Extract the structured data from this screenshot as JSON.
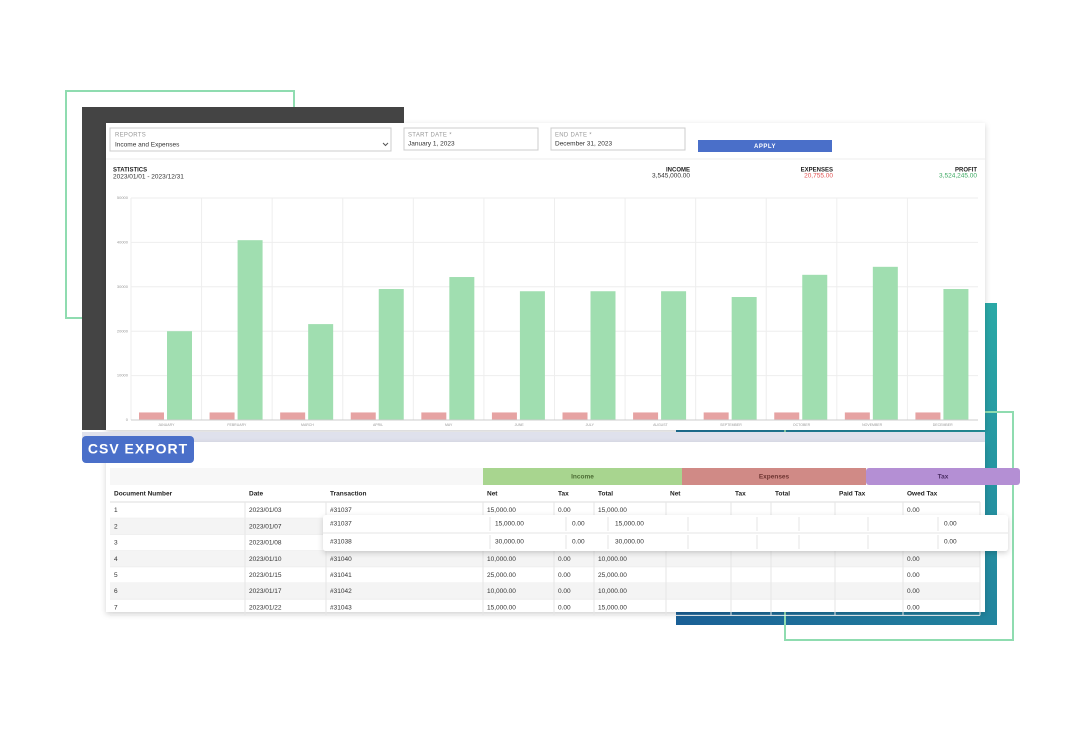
{
  "form": {
    "reports_label": "REPORTS",
    "reports_value": "Income and Expenses",
    "start_date_label": "START DATE *",
    "start_date_value": "January 1, 2023",
    "end_date_label": "END DATE *",
    "end_date_value": "December 31, 2023",
    "apply_button": "APPLY"
  },
  "statistics": {
    "label": "STATISTICS",
    "range": "2023/01/01 - 2023/12/31",
    "income_label": "INCOME",
    "income_value": "3,545,000.00",
    "expenses_label": "EXPENSES",
    "expenses_value": "20,755.00",
    "profit_label": "PROFIT",
    "profit_value": "3,524,245.00"
  },
  "chart_data": {
    "type": "bar",
    "categories": [
      "JANUARY",
      "FEBRUARY",
      "MARCH",
      "APRIL",
      "MAY",
      "JUNE",
      "JULY",
      "AUGUST",
      "SEPTEMBER",
      "OCTOBER",
      "NOVEMBER",
      "DECEMBER"
    ],
    "series": [
      {
        "color": "#e6a3a3",
        "values": [
          1700,
          1700,
          1700,
          1700,
          1700,
          1700,
          1700,
          1700,
          1700,
          1700,
          1700,
          1700
        ]
      },
      {
        "color": "#a0deb0",
        "values": [
          20000,
          40500,
          21600,
          29500,
          32200,
          29000,
          29000,
          29000,
          27700,
          32700,
          34500,
          29500
        ]
      }
    ],
    "ylim": [
      0,
      50000
    ],
    "yticks": [
      0,
      10000,
      20000,
      30000,
      40000,
      50000
    ],
    "grid": true
  },
  "badge": "CSV EXPORT",
  "table": {
    "groups": [
      "Income",
      "Expenses",
      "Tax"
    ],
    "columns": [
      "Document Number",
      "Date",
      "Transaction",
      "Net",
      "Tax",
      "Total",
      "Net",
      "Tax",
      "Total",
      "Paid Tax",
      "Owed Tax"
    ],
    "rows": [
      [
        "1",
        "2023/01/03",
        "#31037",
        "15,000.00",
        "0.00",
        "15,000.00",
        null,
        null,
        null,
        null,
        "0.00"
      ],
      [
        "2",
        "2023/01/07",
        null,
        null,
        null,
        null,
        null,
        null,
        null,
        null,
        null
      ],
      [
        "3",
        "2023/01/08",
        null,
        null,
        null,
        null,
        null,
        null,
        null,
        null,
        null
      ],
      [
        "4",
        "2023/01/10",
        "#31040",
        "10,000.00",
        "0.00",
        "10,000.00",
        null,
        null,
        null,
        null,
        "0.00"
      ],
      [
        "5",
        "2023/01/15",
        "#31041",
        "25,000.00",
        "0.00",
        "25,000.00",
        null,
        null,
        null,
        null,
        "0.00"
      ],
      [
        "6",
        "2023/01/17",
        "#31042",
        "10,000.00",
        "0.00",
        "10,000.00",
        null,
        null,
        null,
        null,
        "0.00"
      ],
      [
        "7",
        "2023/01/22",
        "#31043",
        "15,000.00",
        "0.00",
        "15,000.00",
        null,
        null,
        null,
        null,
        "0.00"
      ]
    ]
  },
  "overlay_rows": [
    [
      "#31037",
      "15,000.00",
      "0.00",
      "15,000.00",
      "0.00"
    ],
    [
      "#31038",
      "30,000.00",
      "0.00",
      "30,000.00",
      "0.00"
    ]
  ]
}
